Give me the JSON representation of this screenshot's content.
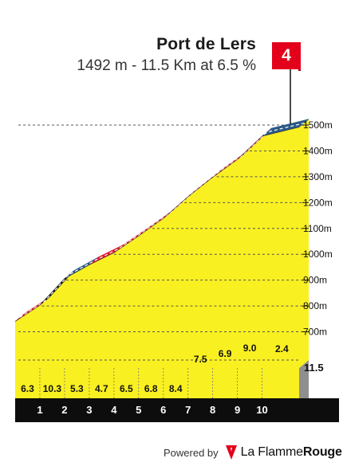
{
  "climb": {
    "name": "Port de Lers",
    "summary": "1492 m - 11.5 Km at 6.5 %",
    "category": "4"
  },
  "footer": {
    "powered_by": "Powered by",
    "brand_prefix": "La Flamme",
    "brand_suffix": "Rouge"
  },
  "colors": {
    "fill": "#f9f021",
    "red": "#e0182d",
    "blue": "#2c5a86",
    "black": "#111111",
    "base_brown": "#b8860b",
    "base_black": "#0d0d0d"
  },
  "chart_data": {
    "type": "area",
    "title": "Port de Lers",
    "xlabel": "",
    "ylabel": "",
    "ylim": [
      600,
      1500
    ],
    "y_ticks": [
      "700m",
      "800m",
      "900m",
      "1000m",
      "1100m",
      "1200m",
      "1300m",
      "1400m",
      "1500m"
    ],
    "x_ticks": [
      "1",
      "2",
      "3",
      "4",
      "5",
      "6",
      "7",
      "8",
      "9",
      "10"
    ],
    "end_label": "11.5",
    "km_start": [
      0,
      1,
      2,
      3,
      4,
      5,
      6,
      7,
      8,
      9,
      10
    ],
    "gradient_labels": [
      "6.3",
      "10.3",
      "5.3",
      "4.7",
      "6.5",
      "6.8",
      "8.4",
      "7.5",
      "6.9",
      "9.0",
      "2.4"
    ],
    "elevation_km": [
      0,
      1,
      2,
      3,
      4,
      5,
      6,
      7,
      8,
      9,
      10,
      11.5
    ],
    "elevation_m": [
      740,
      803,
      906,
      959,
      1006,
      1071,
      1139,
      1223,
      1298,
      1367,
      1457,
      1492
    ],
    "segment_colors": [
      "red",
      "black",
      "blue",
      "red",
      "red",
      "red",
      "red",
      "red",
      "red",
      "red",
      "blue"
    ]
  }
}
